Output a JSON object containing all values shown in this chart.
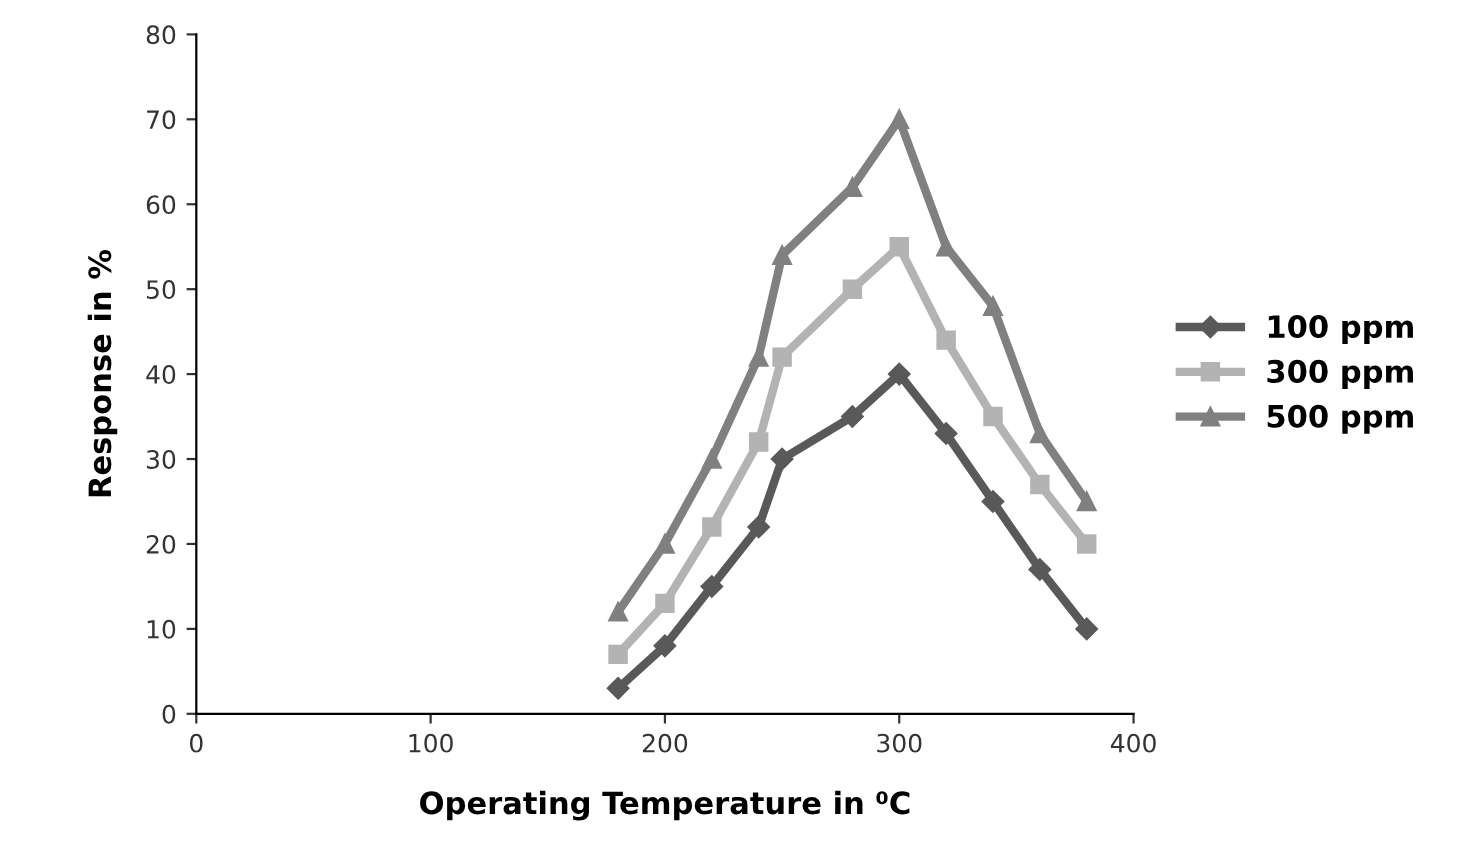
{
  "chart_data": {
    "type": "line",
    "xlabel": "Operating Temperature in ⁰C",
    "ylabel": "Response in %",
    "x": [
      180,
      200,
      220,
      240,
      250,
      280,
      300,
      320,
      340,
      360,
      380
    ],
    "series": [
      {
        "name": "100 ppm",
        "color": "#595959",
        "marker": "diamond",
        "values": [
          3,
          8,
          15,
          22,
          30,
          35,
          40,
          33,
          25,
          17,
          10
        ]
      },
      {
        "name": "300 ppm",
        "color": "#b3b3b3",
        "marker": "square",
        "values": [
          7,
          13,
          22,
          32,
          42,
          50,
          55,
          44,
          35,
          27,
          20
        ]
      },
      {
        "name": "500 ppm",
        "color": "#808080",
        "marker": "triangle",
        "values": [
          12,
          20,
          30,
          42,
          54,
          62,
          70,
          55,
          48,
          33,
          25
        ]
      }
    ],
    "xlim": [
      0,
      400
    ],
    "xticks": [
      0,
      100,
      200,
      300,
      400
    ],
    "ylim": [
      0,
      80
    ],
    "yticks": [
      0,
      10,
      20,
      30,
      40,
      50,
      60,
      70,
      80
    ],
    "legend": "right",
    "grid": false
  }
}
